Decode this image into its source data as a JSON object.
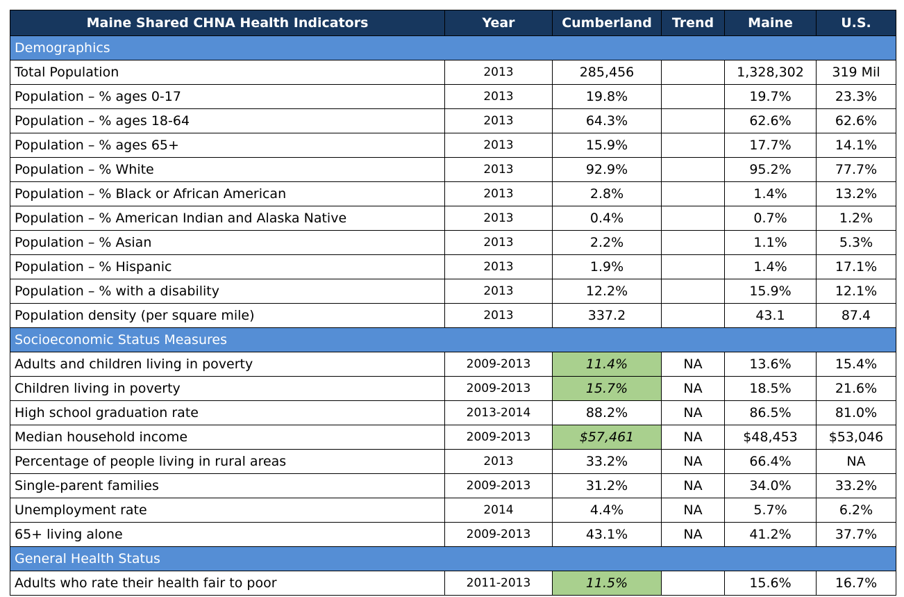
{
  "table": {
    "header": [
      "Maine Shared CHNA Health Indicators",
      "Year",
      "Cumberland",
      "Trend",
      "Maine",
      "U.S."
    ],
    "sections": [
      {
        "title": "Demographics",
        "rows": [
          {
            "cells": [
              "Total Population",
              "2013",
              "285,456",
              null,
              "1,328,302",
              "319 Mil"
            ]
          },
          {
            "cells": [
              "Population – % ages 0-17",
              "2013",
              "19.8%",
              null,
              "19.7%",
              "23.3%"
            ]
          },
          {
            "cells": [
              "Population – % ages 18-64",
              "2013",
              "64.3%",
              null,
              "62.6%",
              "62.6%"
            ]
          },
          {
            "cells": [
              "Population – % ages 65+",
              "2013",
              "15.9%",
              null,
              "17.7%",
              "14.1%"
            ]
          },
          {
            "cells": [
              "Population – % White",
              "2013",
              "92.9%",
              null,
              "95.2%",
              "77.7%"
            ]
          },
          {
            "cells": [
              "Population – % Black or African American",
              "2013",
              "2.8%",
              null,
              "1.4%",
              "13.2%"
            ]
          },
          {
            "cells": [
              "Population – % American Indian and Alaska Native",
              "2013",
              "0.4%",
              null,
              "0.7%",
              "1.2%"
            ]
          },
          {
            "cells": [
              "Population – % Asian",
              "2013",
              "2.2%",
              null,
              "1.1%",
              "5.3%"
            ]
          },
          {
            "cells": [
              "Population – % Hispanic",
              "2013",
              "1.9%",
              null,
              "1.4%",
              "17.1%"
            ]
          },
          {
            "cells": [
              "Population – % with a disability",
              "2013",
              "12.2%",
              null,
              "15.9%",
              "12.1%"
            ]
          },
          {
            "cells": [
              "Population density (per square mile)",
              "2013",
              "337.2",
              null,
              "43.1",
              "87.4"
            ]
          }
        ]
      },
      {
        "title": "Socioeconomic Status Measures",
        "rows": [
          {
            "cells": [
              "Adults and children living in poverty",
              "2009-2013",
              "11.4%",
              "NA",
              "13.6%",
              "15.4%"
            ],
            "highlight": true
          },
          {
            "cells": [
              "Children living in poverty",
              "2009-2013",
              "15.7%",
              "NA",
              "18.5%",
              "21.6%"
            ],
            "highlight": true
          },
          {
            "cells": [
              "High school graduation rate",
              "2013-2014",
              "88.2%",
              "NA",
              "86.5%",
              "81.0%"
            ]
          },
          {
            "cells": [
              "Median household income",
              "2009-2013",
              "$57,461",
              "NA",
              "$48,453",
              "$53,046"
            ],
            "highlight": true
          },
          {
            "cells": [
              "Percentage of people living in rural areas",
              "2013",
              "33.2%",
              "NA",
              "66.4%",
              "NA"
            ]
          },
          {
            "cells": [
              "Single-parent families",
              "2009-2013",
              "31.2%",
              "NA",
              "34.0%",
              "33.2%"
            ]
          },
          {
            "cells": [
              "Unemployment rate",
              "2014",
              "4.4%",
              "NA",
              "5.7%",
              "6.2%"
            ]
          },
          {
            "cells": [
              "65+ living alone",
              "2009-2013",
              "43.1%",
              "NA",
              "41.2%",
              "37.7%"
            ]
          }
        ]
      },
      {
        "title": "General Health Status",
        "rows": [
          {
            "cells": [
              "Adults who rate their health fair to poor",
              "2011-2013",
              "11.5%",
              null,
              "15.6%",
              "16.7%"
            ],
            "highlight": true
          }
        ]
      }
    ]
  }
}
